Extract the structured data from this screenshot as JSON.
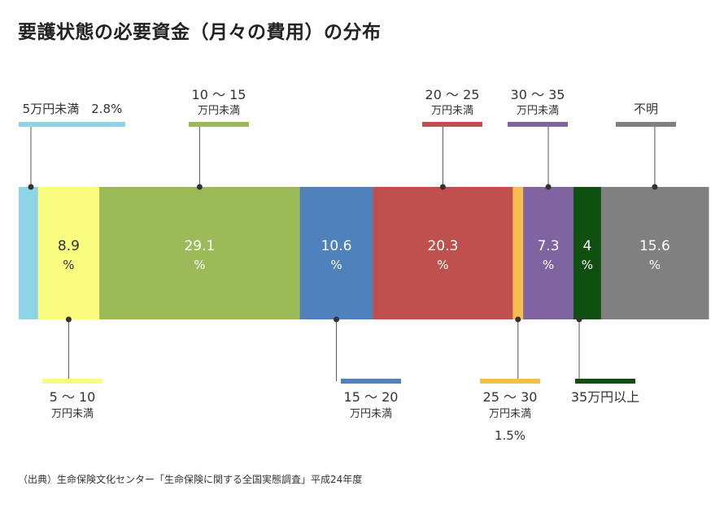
{
  "title": "要護状態の必要資金（月々の費用）の分布",
  "source": "（出典）生命保険文化センター「生命保険に関する全国実態調査」平成24年度",
  "chart_data": {
    "type": "bar",
    "stacked": true,
    "orientation": "horizontal",
    "unit": "%",
    "categories": [
      {
        "id": "lt5",
        "value": 2.8,
        "color": "#8fd3e6",
        "labelPos": "top",
        "label": [
          "5万円未満　2.8%"
        ],
        "showValue": false
      },
      {
        "id": "5to10",
        "value": 8.9,
        "color": "#fafc80",
        "labelPos": "bottom",
        "label": [
          "5 ～ 10",
          "万円未満"
        ],
        "showValue": true,
        "textColor": "#333333"
      },
      {
        "id": "10to15",
        "value": 29.1,
        "color": "#9bbb59",
        "labelPos": "top",
        "label": [
          "10 ～ 15",
          "万円未満"
        ],
        "showValue": true,
        "textColor": "#ffffff"
      },
      {
        "id": "15to20",
        "value": 10.6,
        "color": "#4f81bd",
        "labelPos": "bottom",
        "label": [
          "15 ～ 20",
          "万円未満"
        ],
        "showValue": true,
        "textColor": "#ffffff"
      },
      {
        "id": "20to25",
        "value": 20.3,
        "color": "#c0504d",
        "labelPos": "top",
        "label": [
          "20 ～ 25",
          "万円未満"
        ],
        "showValue": true,
        "textColor": "#ffffff"
      },
      {
        "id": "25to30",
        "value": 1.5,
        "color": "#f7bd4f",
        "labelPos": "bottom",
        "label": [
          "25 ～ 30",
          "万円未満",
          "1.5%"
        ],
        "showValue": false
      },
      {
        "id": "30to35",
        "value": 7.3,
        "color": "#8064a2",
        "labelPos": "top",
        "label": [
          "30 ～ 35",
          "万円未満"
        ],
        "showValue": true,
        "textColor": "#ffffff"
      },
      {
        "id": "35plus",
        "value": 4,
        "color": "#0f4f0f",
        "labelPos": "bottom",
        "label": [
          "35万円以上"
        ],
        "showValue": true,
        "textColor": "#ffffff"
      },
      {
        "id": "unknown",
        "value": 15.6,
        "color": "#808080",
        "labelPos": "top",
        "label": [
          "不明"
        ],
        "showValue": true,
        "textColor": "#ffffff"
      }
    ]
  }
}
